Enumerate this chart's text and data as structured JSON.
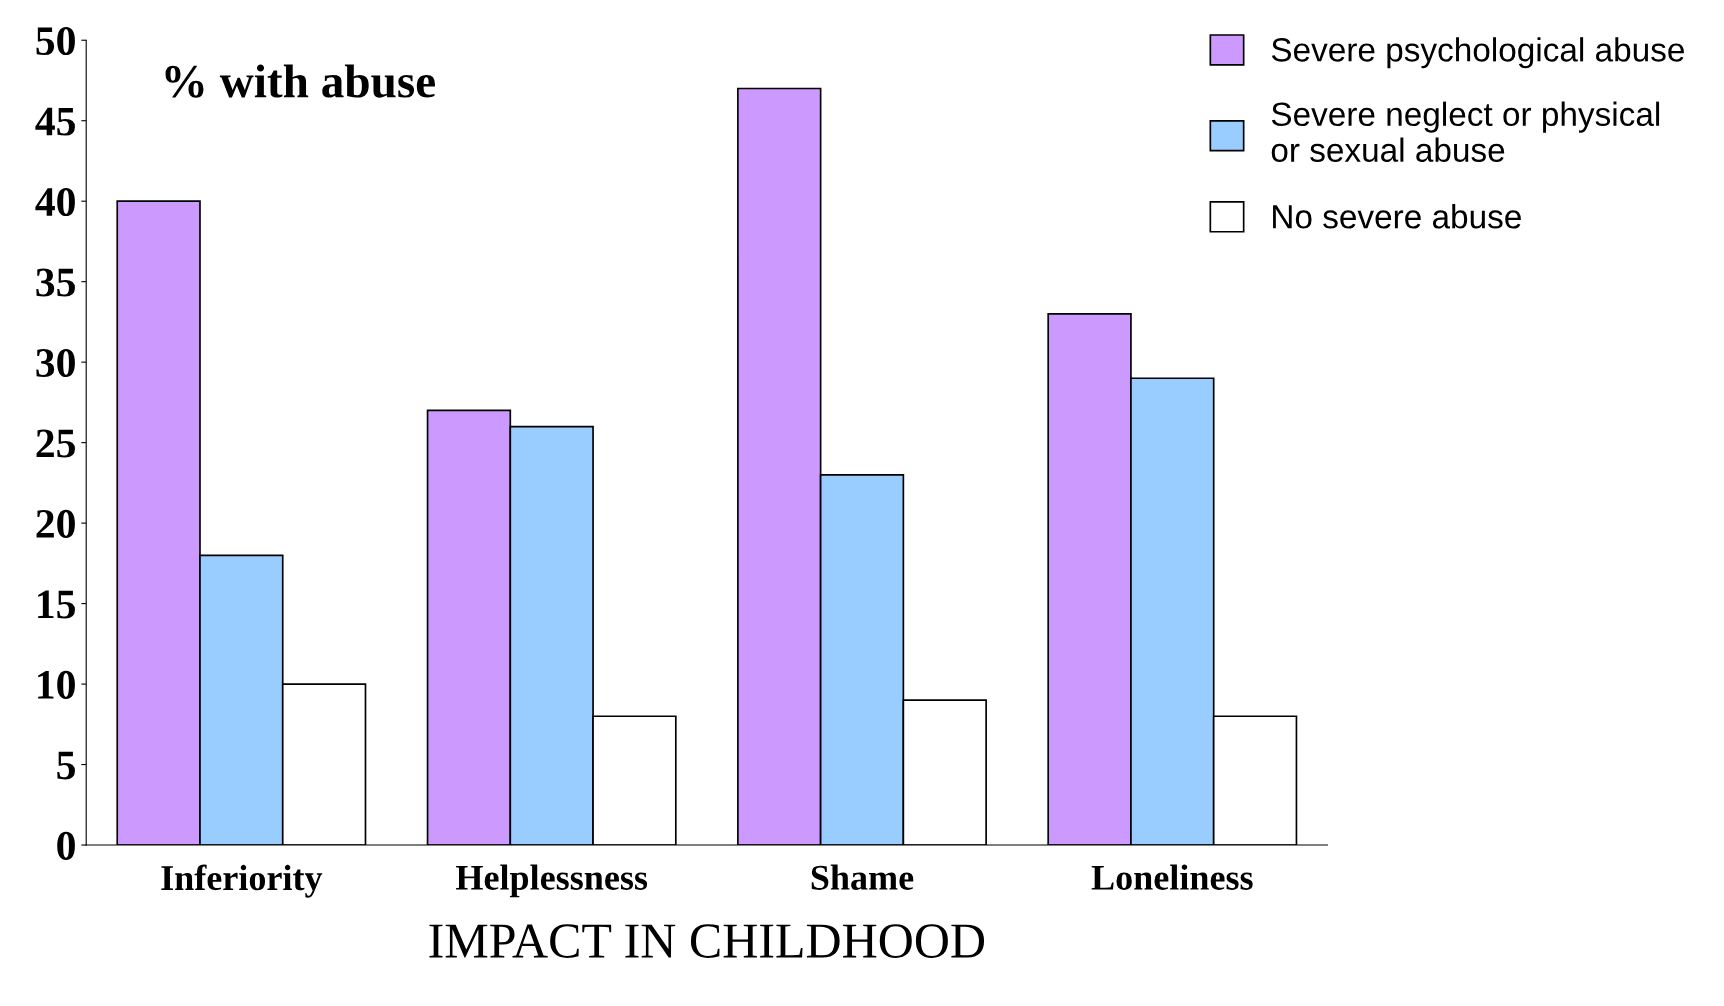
{
  "chart_data": {
    "type": "bar",
    "title": "% with abuse",
    "xlabel": "IMPACT IN CHILDHOOD",
    "categories": [
      "Inferiority",
      "Helplessness",
      "Shame",
      "Loneliness"
    ],
    "series": [
      {
        "name": "Severe psychological abuse",
        "color": "#cc99ff",
        "values": [
          40,
          27,
          47,
          33
        ]
      },
      {
        "name": "Severe neglect or physical\nor sexual abuse",
        "color": "#99ccff",
        "values": [
          18,
          26,
          23,
          29
        ]
      },
      {
        "name": "No severe abuse",
        "color": "#ffffff",
        "values": [
          10,
          8,
          9,
          8
        ]
      }
    ],
    "ylim": [
      0,
      50
    ],
    "yticks": [
      0,
      5,
      10,
      15,
      20,
      25,
      30,
      35,
      40,
      45,
      50
    ],
    "grid": false,
    "legend": "top right"
  }
}
